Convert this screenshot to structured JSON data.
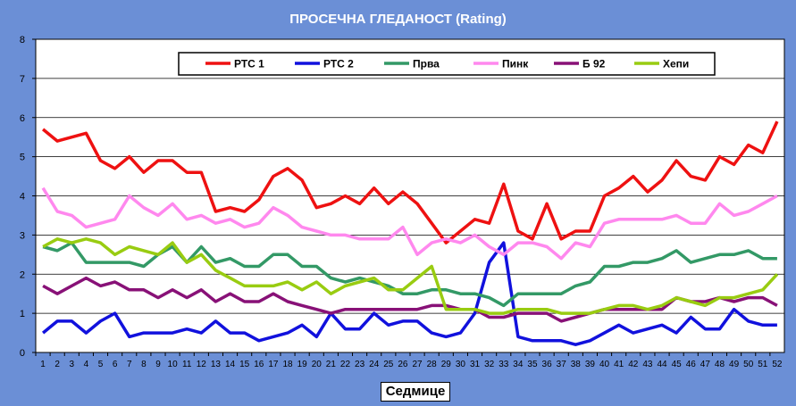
{
  "title": "ПРОСЕЧНА ГЛЕДАНОСТ (Rating)",
  "chart_data": {
    "type": "line",
    "title": "ПРОСЕЧНА ГЛЕДАНОСТ (Rating)",
    "xlabel": "Седмице",
    "ylabel": "",
    "ylim": [
      0,
      8
    ],
    "yticks": [
      "0",
      "1",
      "2",
      "3",
      "4",
      "5",
      "6",
      "7",
      "8"
    ],
    "grid": true,
    "legend_position": "top",
    "categories": [
      "1",
      "2",
      "3",
      "4",
      "5",
      "6",
      "7",
      "8",
      "9",
      "10",
      "11",
      "12",
      "13",
      "14",
      "15",
      "16",
      "17",
      "18",
      "19",
      "20",
      "21",
      "22",
      "23",
      "24",
      "25",
      "26",
      "27",
      "28",
      "29",
      "30",
      "31",
      "32",
      "33",
      "34",
      "35",
      "36",
      "37",
      "38",
      "39",
      "40",
      "41",
      "42",
      "43",
      "44",
      "45",
      "46",
      "47",
      "48",
      "49",
      "50",
      "51",
      "52"
    ],
    "series": [
      {
        "name": "РТС 1",
        "color": "#ee1111",
        "values": [
          5.7,
          5.4,
          5.5,
          5.6,
          4.9,
          4.7,
          5.0,
          4.6,
          4.9,
          4.9,
          4.6,
          4.6,
          3.6,
          3.7,
          3.6,
          3.9,
          4.5,
          4.7,
          4.4,
          3.7,
          3.8,
          4.0,
          3.8,
          4.2,
          3.8,
          4.1,
          3.8,
          3.3,
          2.8,
          3.1,
          3.4,
          3.3,
          4.3,
          3.1,
          2.9,
          3.8,
          2.9,
          3.1,
          3.1,
          4.0,
          4.2,
          4.5,
          4.1,
          4.4,
          4.9,
          4.5,
          4.4,
          5.0,
          4.8,
          5.3,
          5.1,
          5.9
        ]
      },
      {
        "name": "РТС 2",
        "color": "#1111dd",
        "values": [
          0.5,
          0.8,
          0.8,
          0.5,
          0.8,
          1.0,
          0.4,
          0.5,
          0.5,
          0.5,
          0.6,
          0.5,
          0.8,
          0.5,
          0.5,
          0.3,
          0.4,
          0.5,
          0.7,
          0.4,
          1.0,
          0.6,
          0.6,
          1.0,
          0.7,
          0.8,
          0.8,
          0.5,
          0.4,
          0.5,
          1.0,
          2.3,
          2.8,
          0.4,
          0.3,
          0.3,
          0.3,
          0.2,
          0.3,
          0.5,
          0.7,
          0.5,
          0.6,
          0.7,
          0.5,
          0.9,
          0.6,
          0.6,
          1.1,
          0.8,
          0.7,
          0.7
        ]
      },
      {
        "name": "Прва",
        "color": "#339966",
        "values": [
          2.7,
          2.6,
          2.8,
          2.3,
          2.3,
          2.3,
          2.3,
          2.2,
          2.5,
          2.7,
          2.3,
          2.7,
          2.3,
          2.4,
          2.2,
          2.2,
          2.5,
          2.5,
          2.2,
          2.2,
          1.9,
          1.8,
          1.9,
          1.8,
          1.7,
          1.5,
          1.5,
          1.6,
          1.6,
          1.5,
          1.5,
          1.4,
          1.2,
          1.5,
          1.5,
          1.5,
          1.5,
          1.7,
          1.8,
          2.2,
          2.2,
          2.3,
          2.3,
          2.4,
          2.6,
          2.3,
          2.4,
          2.5,
          2.5,
          2.6,
          2.4,
          2.4
        ]
      },
      {
        "name": "Пинк",
        "color": "#ff88ee",
        "values": [
          4.2,
          3.6,
          3.5,
          3.2,
          3.3,
          3.4,
          4.0,
          3.7,
          3.5,
          3.8,
          3.4,
          3.5,
          3.3,
          3.4,
          3.2,
          3.3,
          3.7,
          3.5,
          3.2,
          3.1,
          3.0,
          3.0,
          2.9,
          2.9,
          2.9,
          3.2,
          2.5,
          2.8,
          2.9,
          2.8,
          3.0,
          2.7,
          2.5,
          2.8,
          2.8,
          2.7,
          2.4,
          2.8,
          2.7,
          3.3,
          3.4,
          3.4,
          3.4,
          3.4,
          3.5,
          3.3,
          3.3,
          3.8,
          3.5,
          3.6,
          3.8,
          4.0
        ]
      },
      {
        "name": "Б 92",
        "color": "#881177",
        "values": [
          1.7,
          1.5,
          1.7,
          1.9,
          1.7,
          1.8,
          1.6,
          1.6,
          1.4,
          1.6,
          1.4,
          1.6,
          1.3,
          1.5,
          1.3,
          1.3,
          1.5,
          1.3,
          1.2,
          1.1,
          1.0,
          1.1,
          1.1,
          1.1,
          1.1,
          1.1,
          1.1,
          1.2,
          1.2,
          1.1,
          1.1,
          0.9,
          0.9,
          1.0,
          1.0,
          1.0,
          0.8,
          0.9,
          1.0,
          1.1,
          1.1,
          1.1,
          1.1,
          1.1,
          1.4,
          1.3,
          1.3,
          1.4,
          1.3,
          1.4,
          1.4,
          1.2
        ]
      },
      {
        "name": "Хепи",
        "color": "#99cc11",
        "values": [
          2.7,
          2.9,
          2.8,
          2.9,
          2.8,
          2.5,
          2.7,
          2.6,
          2.5,
          2.8,
          2.3,
          2.5,
          2.1,
          1.9,
          1.7,
          1.7,
          1.7,
          1.8,
          1.6,
          1.8,
          1.5,
          1.7,
          1.8,
          1.9,
          1.6,
          1.6,
          1.9,
          2.2,
          1.1,
          1.1,
          1.1,
          1.0,
          1.0,
          1.1,
          1.1,
          1.1,
          1.0,
          1.0,
          1.0,
          1.1,
          1.2,
          1.2,
          1.1,
          1.2,
          1.4,
          1.3,
          1.2,
          1.4,
          1.4,
          1.5,
          1.6,
          2.0
        ]
      }
    ]
  }
}
